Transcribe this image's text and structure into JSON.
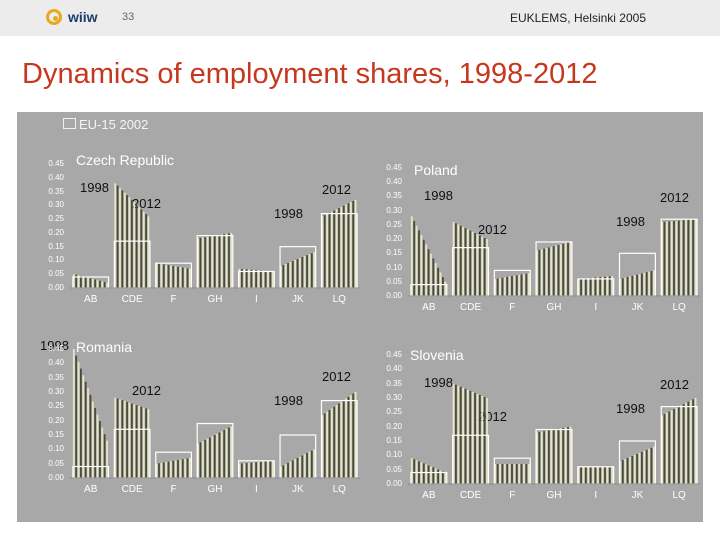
{
  "header": {
    "logo_text": "wiiw",
    "page_number": "33",
    "conference": "EUKLEMS, Helsinki 2005"
  },
  "title": "Dynamics of employment shares, 1998-2012",
  "legend": {
    "label": "EU-15 2002"
  },
  "colors": {
    "panel": "#a8a8a8",
    "plot_bg": "#a8a8a8",
    "title": "#c7361e",
    "bar_light": "#e6e6c8",
    "bar_dark": "#4a4a3a",
    "eu_outline": "#ffffff"
  },
  "chart_data": [
    {
      "type": "bar",
      "title": "Czech Republic",
      "annotations": [
        {
          "text": "1998",
          "anchor": "left-top"
        },
        {
          "text": "2012",
          "anchor": "left-mid"
        },
        {
          "text": "1998",
          "anchor": "right-mid"
        },
        {
          "text": "2012",
          "anchor": "right-top"
        }
      ],
      "categories": [
        "AB",
        "CDE",
        "F",
        "GH",
        "I",
        "JK",
        "LQ"
      ],
      "ylim": [
        0,
        0.45
      ],
      "yticks": [
        "0.45",
        "0.40",
        "0.35",
        "0.30",
        "0.25",
        "0.20",
        "0.15",
        "0.10",
        "0.05",
        "0.00"
      ],
      "eu15_2002": [
        0.04,
        0.17,
        0.09,
        0.19,
        0.06,
        0.15,
        0.27
      ],
      "bars_per_category": 15,
      "series": [
        {
          "name": "1998",
          "values": [
            0.05,
            0.38,
            0.09,
            0.18,
            0.07,
            0.08,
            0.26
          ]
        },
        {
          "name": "2012",
          "values": [
            0.02,
            0.26,
            0.07,
            0.2,
            0.06,
            0.13,
            0.32
          ]
        }
      ]
    },
    {
      "type": "bar",
      "title": "Poland",
      "annotations": [
        {
          "text": "1998",
          "anchor": "left-top"
        },
        {
          "text": "2012",
          "anchor": "left-mid"
        },
        {
          "text": "1998",
          "anchor": "right-mid"
        },
        {
          "text": "2012",
          "anchor": "right-top"
        }
      ],
      "categories": [
        "AB",
        "CDE",
        "F",
        "GH",
        "I",
        "JK",
        "LQ"
      ],
      "ylim": [
        0,
        0.45
      ],
      "yticks": [
        "0.45",
        "0.40",
        "0.35",
        "0.30",
        "0.25",
        "0.20",
        "0.15",
        "0.10",
        "0.05",
        "0.00"
      ],
      "eu15_2002": [
        0.04,
        0.17,
        0.09,
        0.19,
        0.06,
        0.15,
        0.27
      ],
      "bars_per_category": 15,
      "series": [
        {
          "name": "1998",
          "values": [
            0.28,
            0.26,
            0.06,
            0.16,
            0.06,
            0.06,
            0.26
          ]
        },
        {
          "name": "2012",
          "values": [
            0.05,
            0.2,
            0.08,
            0.19,
            0.07,
            0.09,
            0.27
          ]
        }
      ]
    },
    {
      "type": "bar",
      "title": "Romania",
      "annotations": [
        {
          "text": "1998",
          "anchor": "title-left"
        },
        {
          "text": "2012",
          "anchor": "left-mid"
        },
        {
          "text": "1998",
          "anchor": "right-mid"
        },
        {
          "text": "2012",
          "anchor": "right-top"
        }
      ],
      "categories": [
        "AB",
        "CDE",
        "F",
        "GH",
        "I",
        "JK",
        "LQ"
      ],
      "ylim": [
        0,
        0.45
      ],
      "yticks": [
        "0.45",
        "0.40",
        "0.35",
        "0.30",
        "0.25",
        "0.20",
        "0.15",
        "0.10",
        "0.05",
        "0.00"
      ],
      "eu15_2002": [
        0.04,
        0.17,
        0.09,
        0.19,
        0.06,
        0.15,
        0.27
      ],
      "bars_per_category": 15,
      "series": [
        {
          "name": "1998",
          "values": [
            0.45,
            0.28,
            0.05,
            0.12,
            0.05,
            0.04,
            0.22
          ]
        },
        {
          "name": "2012",
          "values": [
            0.13,
            0.24,
            0.07,
            0.18,
            0.06,
            0.1,
            0.3
          ]
        }
      ]
    },
    {
      "type": "bar",
      "title": "Slovenia",
      "annotations": [
        {
          "text": "1998",
          "anchor": "left-top"
        },
        {
          "text": "2012",
          "anchor": "left-mid"
        },
        {
          "text": "1998",
          "anchor": "right-mid"
        },
        {
          "text": "2012",
          "anchor": "right-top"
        }
      ],
      "categories": [
        "AB",
        "CDE",
        "F",
        "GH",
        "I",
        "JK",
        "LQ"
      ],
      "ylim": [
        0,
        0.45
      ],
      "yticks": [
        "0.45",
        "0.40",
        "0.35",
        "0.30",
        "0.25",
        "0.20",
        "0.15",
        "0.10",
        "0.05",
        "0.00"
      ],
      "eu15_2002": [
        0.04,
        0.17,
        0.09,
        0.19,
        0.06,
        0.15,
        0.27
      ],
      "bars_per_category": 15,
      "series": [
        {
          "name": "1998",
          "values": [
            0.09,
            0.35,
            0.07,
            0.18,
            0.06,
            0.08,
            0.24
          ]
        },
        {
          "name": "2012",
          "values": [
            0.04,
            0.3,
            0.07,
            0.2,
            0.06,
            0.13,
            0.3
          ]
        }
      ]
    }
  ]
}
